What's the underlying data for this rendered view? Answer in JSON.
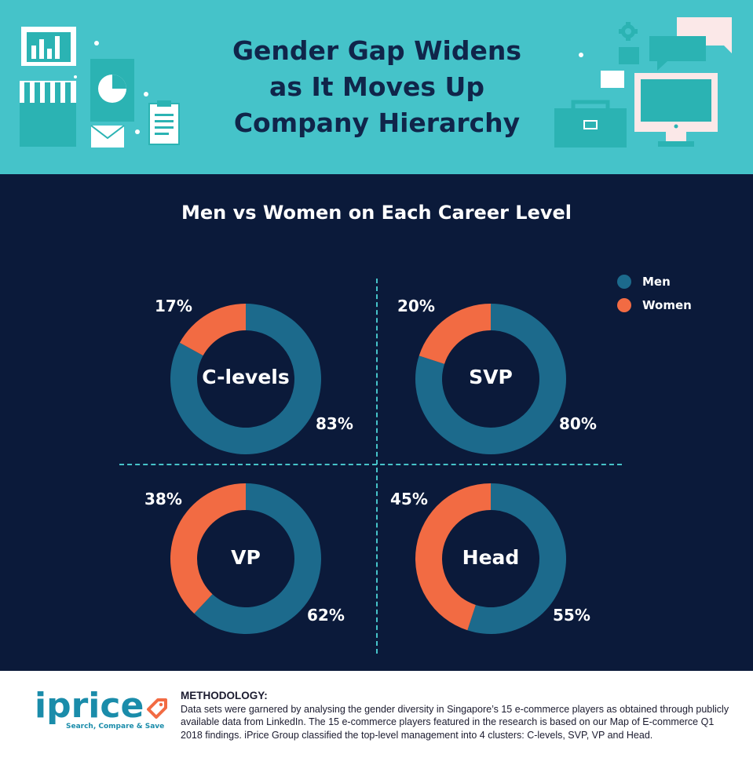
{
  "header": {
    "title_line1": "Gender Gap Widens",
    "title_line2": "as It Moves Up",
    "title_line3": "Company Hierarchy",
    "background": "#45c3c9",
    "decor_icons": [
      "bar-chart-icon",
      "storefront-icon",
      "pie-chart-icon",
      "envelope-icon",
      "clipboard-icon",
      "gear-icon",
      "chat-bubble-icon",
      "briefcase-icon",
      "monitor-icon"
    ]
  },
  "colors": {
    "men": "#1c6a8c",
    "women": "#f26b43",
    "background": "#0b1a3a",
    "divider": "#46c3c9"
  },
  "chart_data": {
    "type": "pie",
    "title": "Men vs Women on Each Career Level",
    "legend": [
      {
        "name": "Men",
        "color": "#1c6a8c"
      },
      {
        "name": "Women",
        "color": "#f26b43"
      }
    ],
    "legend_position": "top-right",
    "charts": [
      {
        "label": "C-levels",
        "men": 83,
        "women": 17,
        "men_label": "83%",
        "women_label": "17%"
      },
      {
        "label": "SVP",
        "men": 80,
        "women": 20,
        "men_label": "80%",
        "women_label": "20%"
      },
      {
        "label": "VP",
        "men": 62,
        "women": 38,
        "men_label": "62%",
        "women_label": "38%"
      },
      {
        "label": "Head",
        "men": 55,
        "women": 45,
        "men_label": "55%",
        "women_label": "45%"
      }
    ]
  },
  "footer": {
    "logo_text": "iprice",
    "logo_tagline": "Search, Compare & Save",
    "methodology_title": "METHODOLOGY:",
    "methodology_text": "Data sets were garnered by analysing the gender diversity in Singapore’s 15 e-commerce players as obtained through publicly available data from LinkedIn. The 15 e-commerce players featured in the research is based on our Map of E-commerce Q1 2018 findings. iPrice Group classified the top-level management into 4 clusters: C-levels, SVP, VP and Head."
  }
}
